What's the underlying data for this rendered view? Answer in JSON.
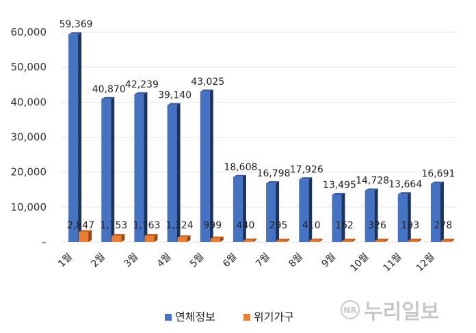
{
  "chart_data": {
    "type": "bar",
    "categories": [
      "1월",
      "2월",
      "3월",
      "4월",
      "5월",
      "6월",
      "7월",
      "8월",
      "9월",
      "10월",
      "11월",
      "12월"
    ],
    "series": [
      {
        "name": "연체정보",
        "color": "#4472C4",
        "values": [
          59369,
          40870,
          42239,
          39140,
          43025,
          18608,
          16798,
          17926,
          13495,
          14728,
          13664,
          16691
        ],
        "labels": [
          "59,369",
          "40,870",
          "42,239",
          "39,140",
          "43,025",
          "18,608",
          "16,798",
          "17,926",
          "13,495",
          "14,728",
          "13,664",
          "16,691"
        ]
      },
      {
        "name": "위기가구",
        "color": "#ED7D31",
        "values": [
          2847,
          1753,
          1763,
          1324,
          999,
          440,
          295,
          410,
          162,
          326,
          193,
          278
        ],
        "labels": [
          "2,847",
          "1,753",
          "1,763",
          "1,324",
          "999",
          "440",
          "295",
          "410",
          "162",
          "326",
          "193",
          "278"
        ]
      }
    ],
    "yticks": [
      "–",
      "10,000",
      "20,000",
      "30,000",
      "40,000",
      "50,000",
      "60,000"
    ],
    "ylim": [
      0,
      60000
    ],
    "grid": true,
    "legend": "bottom"
  },
  "watermark": {
    "symbol": "NR",
    "text": "누리일보"
  }
}
